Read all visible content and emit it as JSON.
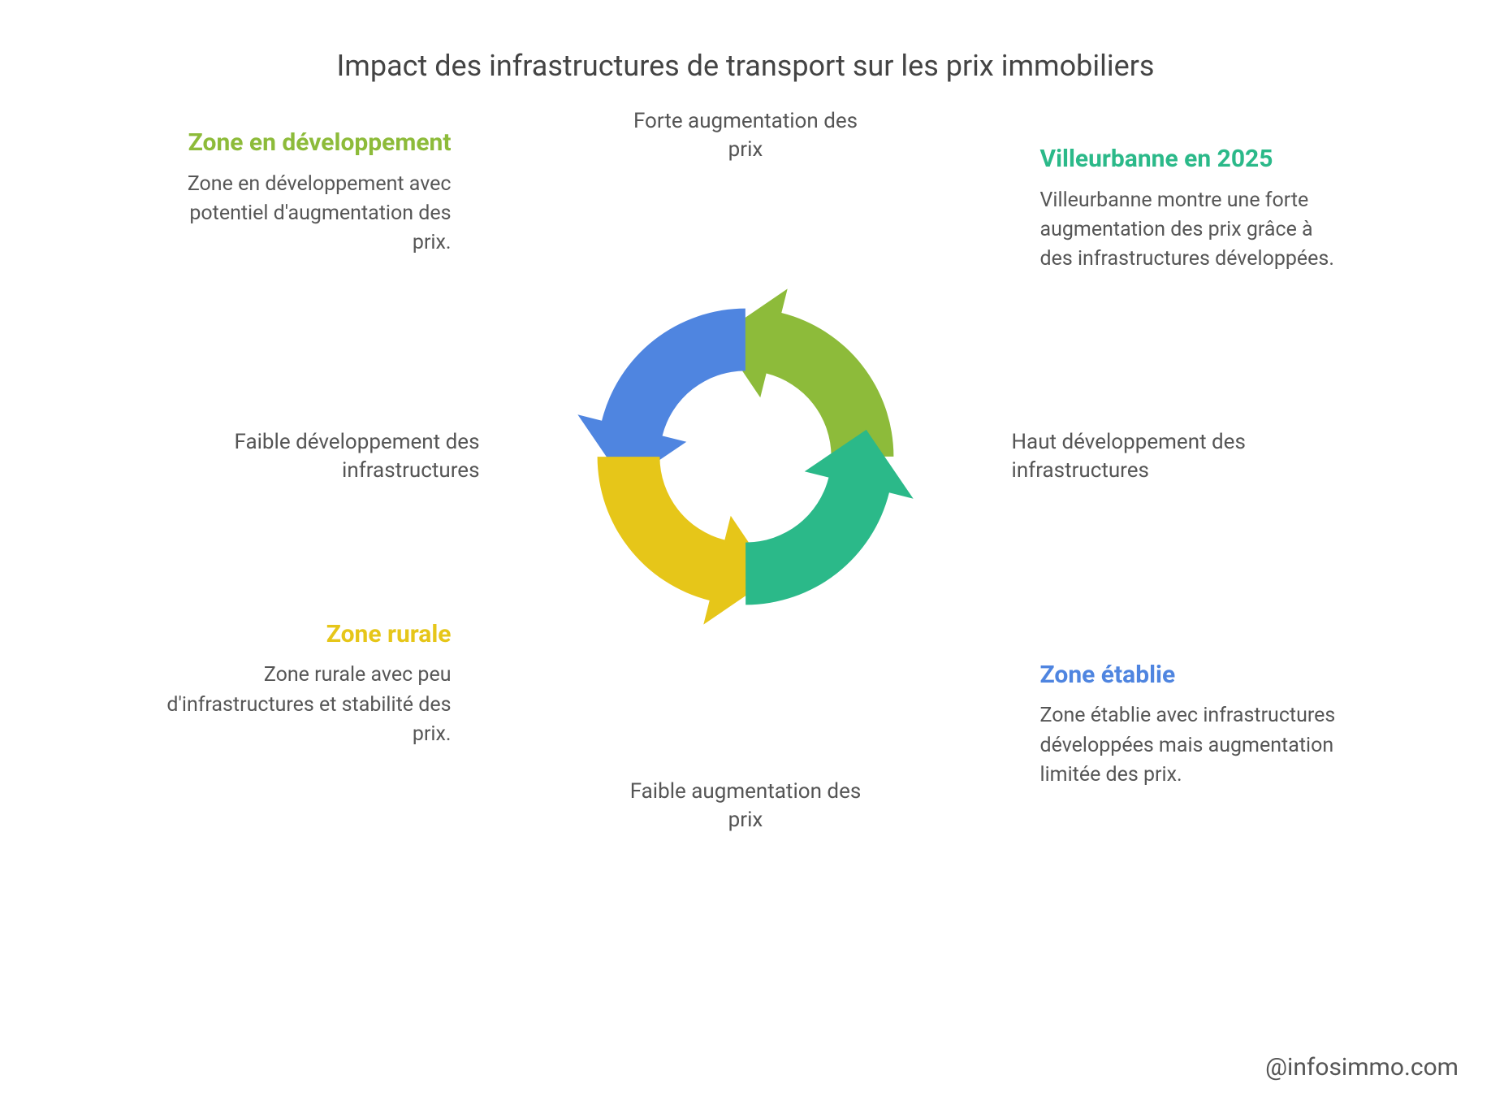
{
  "title": "Impact des infrastructures de transport sur les prix immobiliers",
  "credit": "@infosimmo.com",
  "colors": {
    "blue": "#4f85e0",
    "green": "#8dbb3a",
    "teal": "#2bb989",
    "yellow": "#e6c619",
    "title_text": "#444444",
    "body_text": "#565656",
    "axis_text": "#555555",
    "background": "#ffffff"
  },
  "typography": {
    "title_fontsize": 36,
    "heading_fontsize": 30,
    "body_fontsize": 25,
    "axis_fontsize": 26,
    "credit_fontsize": 30
  },
  "axes": {
    "top": "Forte augmentation des prix",
    "bottom": "Faible augmentation des prix",
    "left": "Faible développement des infrastructures",
    "right": "Haut développement des infrastructures"
  },
  "quadrants": {
    "top_left": {
      "heading": "Zone en développement",
      "body": "Zone en développement avec potentiel d'augmentation des prix.",
      "color": "#8dbb3a",
      "arrow_color": "#4f85e0"
    },
    "top_right": {
      "heading": "Villeurbanne en 2025",
      "body": "Villeurbanne montre une forte augmentation des prix grâce à des infrastructures développées.",
      "color": "#2bb989",
      "arrow_color": "#8dbb3a"
    },
    "bottom_left": {
      "heading": "Zone rurale",
      "body": "Zone rurale avec peu d'infrastructures et stabilité des prix.",
      "color": "#e6c619",
      "arrow_color": "#e6c619"
    },
    "bottom_right": {
      "heading": "Zone établie",
      "body": "Zone établie avec infrastructures développées mais augmentation limitée des prix.",
      "color": "#4f85e0",
      "arrow_color": "#2bb989"
    }
  },
  "diagram": {
    "type": "cycle-quadrant",
    "outer_radius": 190,
    "inner_radius": 110,
    "arrowhead_extent": 58,
    "gap_deg": 3
  }
}
